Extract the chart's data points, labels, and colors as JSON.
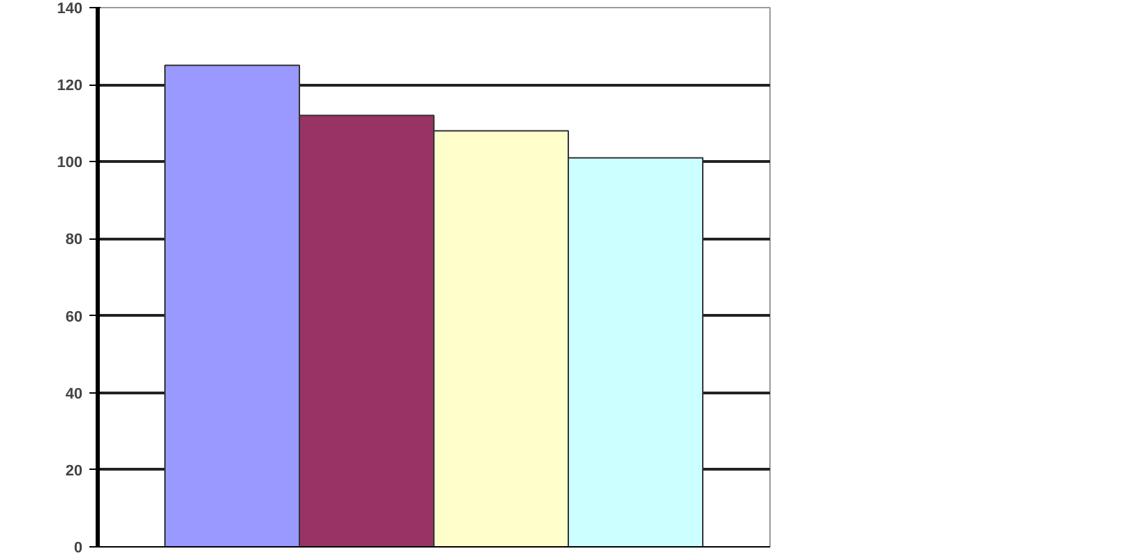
{
  "chart_data": {
    "type": "bar",
    "categories": [
      null
    ],
    "series": [
      {
        "color": "#9999ff",
        "values": [
          125
        ]
      },
      {
        "color": "#993366",
        "values": [
          112
        ]
      },
      {
        "color": "#ffffcc",
        "values": [
          108
        ]
      },
      {
        "color": "#ccffff",
        "values": [
          101
        ]
      }
    ],
    "ylim": [
      0,
      140
    ],
    "yticks": [
      0,
      20,
      40,
      60,
      80,
      100,
      120,
      140
    ],
    "grid": "y"
  }
}
